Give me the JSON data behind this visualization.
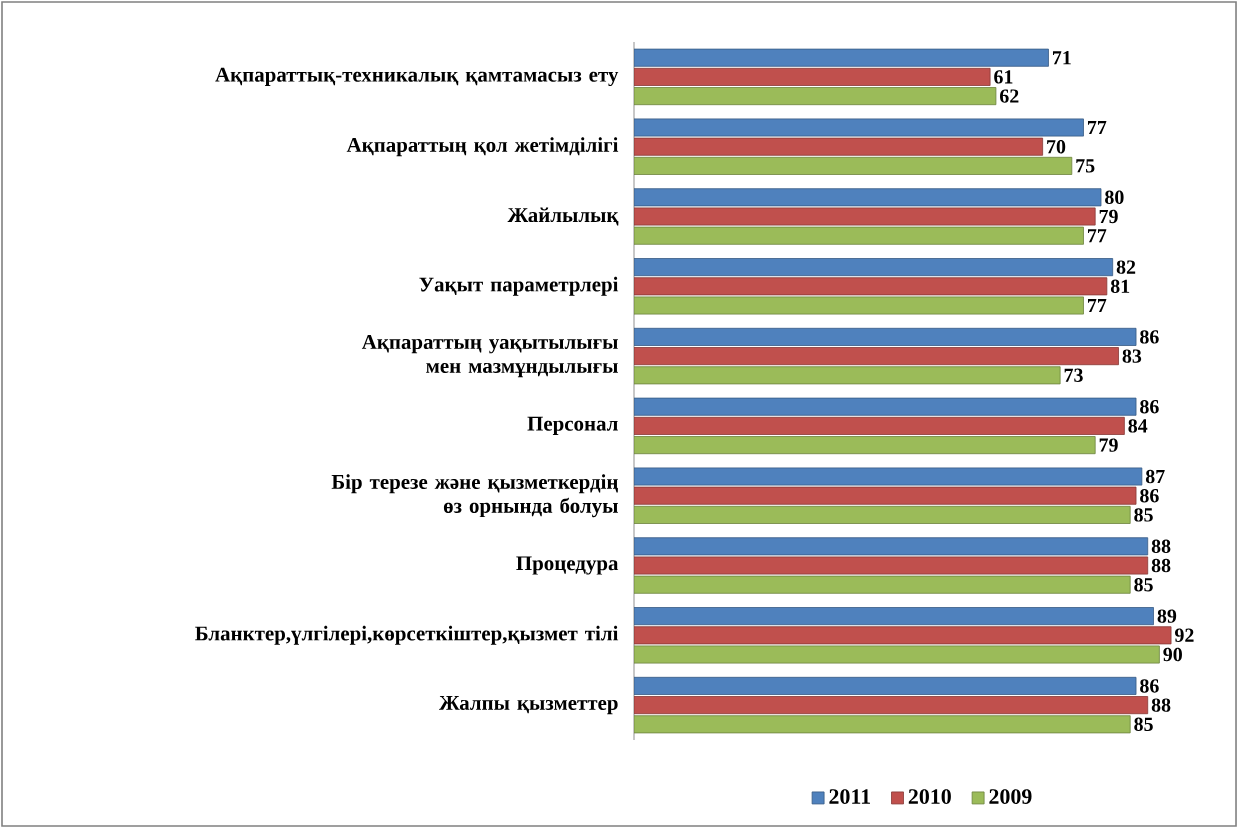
{
  "chart_data": {
    "type": "bar",
    "orientation": "horizontal",
    "categories": [
      "Ақпараттық-техникалық қамтамасыз ету",
      "Ақпараттың қол жетімділігі",
      "Жайлылық",
      "Уақыт параметрлері",
      "Ақпараттың уақытылығы мен мазмұндылығы",
      "Персонал",
      "Бір терезе және қызметкердің өз орнында болуы",
      "Процедура",
      "Бланктер,үлгілері,көрсеткіштер,қызмет тілі",
      "Жалпы қызметтер"
    ],
    "series": [
      {
        "name": "2011",
        "color": "#4f81bd",
        "values": [
          71,
          77,
          80,
          82,
          86,
          86,
          87,
          88,
          89,
          86
        ]
      },
      {
        "name": "2010",
        "color": "#c0504d",
        "values": [
          61,
          70,
          79,
          81,
          83,
          84,
          86,
          88,
          92,
          88
        ]
      },
      {
        "name": "2009",
        "color": "#9bbb59",
        "values": [
          62,
          75,
          77,
          77,
          73,
          79,
          85,
          85,
          90,
          85
        ]
      }
    ],
    "data_labels": true,
    "legend": "bottom",
    "tick_labels": "y"
  }
}
